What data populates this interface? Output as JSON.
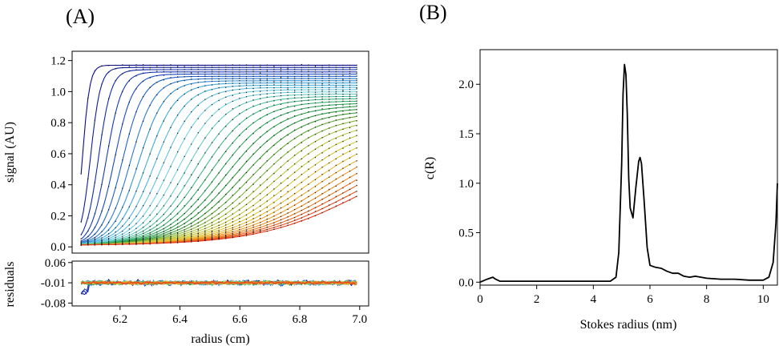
{
  "panels": {
    "a_label": "(A)",
    "b_label": "(B)"
  },
  "chart_data": [
    {
      "type": "line",
      "panel": "A",
      "subtype": "sedimentation-velocity scans with fit",
      "xlabel": "radius (cm)",
      "ylabel": "signal (AU)",
      "xlim": [
        6.04,
        7.03
      ],
      "ylim": [
        -0.04,
        1.26
      ],
      "xticks": [
        "6.2",
        "6.4",
        "6.6",
        "6.8",
        "7.0"
      ],
      "yticks": [
        "0.0",
        "0.2",
        "0.4",
        "0.6",
        "0.8",
        "1.0",
        "1.2"
      ],
      "scan_count": 36,
      "plateau": 1.17,
      "baseline": 0.01,
      "radius_range": [
        6.07,
        6.99
      ],
      "colormap": [
        "#0c0c8c",
        "#1846c8",
        "#3ba6dc",
        "#7ed8e6",
        "#3cb478",
        "#2e9a3c",
        "#b4c83c",
        "#e6c83c",
        "#f08c1e",
        "#e63c1e"
      ]
    },
    {
      "type": "line",
      "panel": "A-residuals",
      "ylabel": "residuals",
      "xlabel": "radius (cm)",
      "xlim": [
        6.04,
        7.03
      ],
      "ylim": [
        -0.09,
        0.065
      ],
      "yticks": [
        "0.06",
        "-0.01",
        "-0.08"
      ],
      "ytick_values": [
        0.06,
        -0.01,
        -0.08
      ],
      "center": -0.01,
      "noise_amplitude": 0.01
    },
    {
      "type": "line",
      "panel": "B",
      "xlabel": "Stokes radius (nm)",
      "ylabel": "c(R)",
      "xlim": [
        0,
        10.5
      ],
      "ylim": [
        -0.03,
        2.35
      ],
      "xticks": [
        "0",
        "2",
        "4",
        "6",
        "8",
        "10"
      ],
      "yticks": [
        "0.0",
        "0.5",
        "1.0",
        "1.5",
        "2.0"
      ],
      "x": [
        0,
        0.25,
        0.45,
        0.55,
        0.7,
        1.0,
        2.0,
        3.0,
        4.0,
        4.6,
        4.8,
        4.9,
        5.0,
        5.05,
        5.1,
        5.15,
        5.2,
        5.25,
        5.3,
        5.4,
        5.5,
        5.6,
        5.65,
        5.7,
        5.8,
        5.9,
        6.0,
        6.2,
        6.4,
        6.6,
        6.8,
        7.0,
        7.2,
        7.4,
        7.6,
        7.8,
        8.0,
        8.5,
        9.0,
        9.5,
        10.0,
        10.2,
        10.35,
        10.45,
        10.5
      ],
      "y": [
        0.0,
        0.03,
        0.05,
        0.03,
        0.01,
        0.01,
        0.01,
        0.01,
        0.01,
        0.01,
        0.05,
        0.3,
        1.2,
        1.9,
        2.2,
        2.1,
        1.7,
        1.05,
        0.75,
        0.65,
        0.95,
        1.22,
        1.26,
        1.2,
        0.8,
        0.35,
        0.17,
        0.15,
        0.14,
        0.11,
        0.09,
        0.09,
        0.06,
        0.05,
        0.06,
        0.05,
        0.04,
        0.03,
        0.03,
        0.02,
        0.02,
        0.05,
        0.2,
        0.6,
        1.0
      ]
    }
  ]
}
